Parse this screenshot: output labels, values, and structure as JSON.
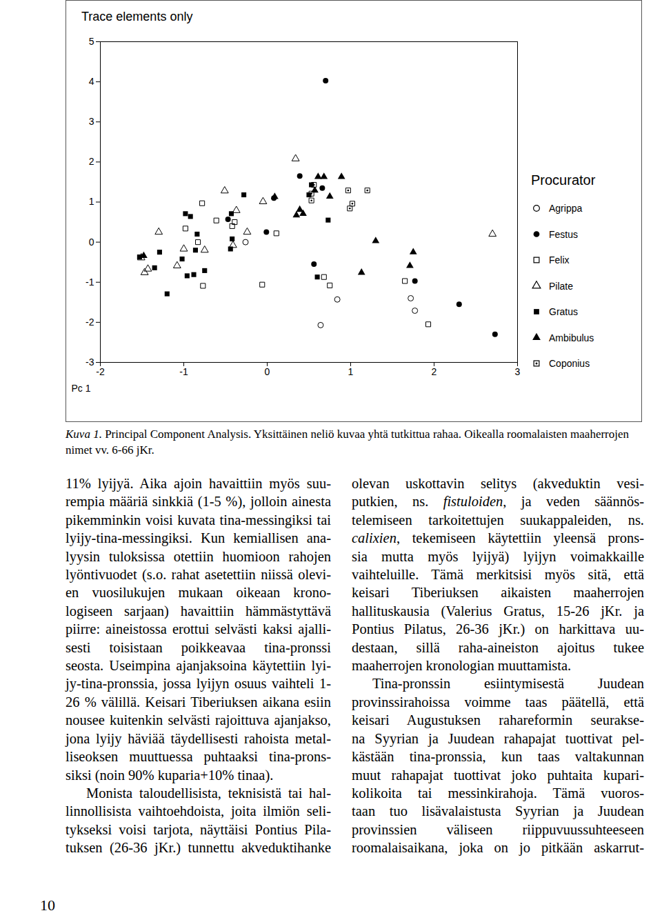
{
  "chart_data": {
    "type": "scatter",
    "title": "Trace elements only",
    "x_label": "Pc 1",
    "xlim": [
      -2,
      3
    ],
    "xticks": [
      -2,
      -1,
      0,
      1,
      2,
      3
    ],
    "ylim": [
      -3,
      5
    ],
    "yticks": [
      -3,
      -2,
      -1,
      0,
      1,
      2,
      3,
      4,
      5
    ],
    "legend": "right",
    "legend_title": "Procurator",
    "series": [
      {
        "name": "Agrippa",
        "marker": "open circle",
        "color": "#000000",
        "x": [
          -0.26,
          0.84,
          0.64,
          1.72,
          1.77
        ],
        "values": [
          0.0,
          -1.43,
          -2.07,
          -1.4,
          -1.71
        ]
      },
      {
        "name": "Festus",
        "marker": "circle",
        "color": "#000000",
        "x": [
          0.7,
          0.39,
          0.08,
          -0.47,
          -0.01,
          0.56,
          1.77,
          2.3,
          2.73,
          0.66
        ],
        "values": [
          4.03,
          1.65,
          1.1,
          0.57,
          0.25,
          -0.55,
          -0.97,
          -1.55,
          -2.3,
          1.35
        ]
      },
      {
        "name": "Felix",
        "marker": "open square",
        "color": "#000000",
        "x": [
          -0.06,
          -0.77,
          0.68,
          0.75,
          1.93,
          1.65,
          -0.78,
          -0.61,
          -0.39,
          0.11,
          -0.98,
          -0.83,
          -0.42
        ],
        "values": [
          -1.06,
          -1.09,
          -0.87,
          -1.08,
          -2.05,
          -0.97,
          0.97,
          0.54,
          0.5,
          0.22,
          0.34,
          0.0,
          0.4
        ]
      },
      {
        "name": "Pilate",
        "marker": "open triangle",
        "color": "#000000",
        "x": [
          0.34,
          -0.51,
          -0.05,
          -0.37,
          -0.24,
          -1.3,
          -1.0,
          -0.75,
          -0.41,
          -1.08,
          -1.43,
          -1.47,
          -1.51,
          2.7
        ],
        "values": [
          2.08,
          1.28,
          1.01,
          0.79,
          0.25,
          0.25,
          -0.17,
          -0.2,
          -0.08,
          -0.59,
          -0.67,
          -0.76,
          -0.39,
          0.2
        ]
      },
      {
        "name": "Gratus",
        "marker": "square",
        "color": "#000000",
        "x": [
          -1.2,
          -1.29,
          -1.53,
          -1.35,
          -0.96,
          -0.88,
          -0.75,
          -1.02,
          -0.98,
          -0.92,
          -0.84,
          -0.86,
          -0.43,
          -0.28,
          -0.42,
          -0.44,
          0.6,
          0.73,
          0.53,
          0.5
        ],
        "values": [
          -1.29,
          -0.25,
          -0.37,
          -0.64,
          -0.84,
          -0.81,
          -0.71,
          -0.42,
          0.71,
          0.64,
          0.2,
          -0.2,
          0.71,
          1.18,
          0.08,
          -0.17,
          -0.87,
          0.55,
          1.43,
          1.18
        ]
      },
      {
        "name": "Ambibulus",
        "marker": "triangle",
        "color": "#000000",
        "x": [
          0.89,
          0.61,
          0.68,
          0.75,
          0.43,
          0.35,
          0.39,
          0.57,
          0.09,
          1.3,
          1.75,
          1.71,
          1.13,
          -1.48
        ],
        "values": [
          1.63,
          1.63,
          1.63,
          1.14,
          0.71,
          0.67,
          0.81,
          1.29,
          1.13,
          0.03,
          -0.25,
          -0.59,
          -0.76,
          -0.34
        ]
      },
      {
        "name": "Coponius",
        "marker": "dotted square",
        "color": "#000000",
        "x": [
          0.97,
          1.2,
          1.02,
          0.99,
          0.56,
          0.53,
          0.53
        ],
        "values": [
          1.29,
          1.29,
          0.96,
          0.84,
          1.43,
          1.04,
          1.21
        ]
      }
    ]
  },
  "caption": {
    "label": "Kuva 1.",
    "text": " Principal Component Analysis. Yksittäinen neliö kuvaa yhtä tutkittua rahaa. Oikealla roomalaisten maaherrojen nimet vv. 6-66 jKr."
  },
  "columns": [
    [
      [
        "11% lyijyä. Aika ajoin havaittiin myös suu-",
        "rempia määriä sinkkiä (1-5 %), jolloin ainesta",
        "pikemminkin voisi kuvata tina-messingiksi tai",
        "lyijy-tina-messingiksi. Kun kemiallisen ana-",
        "lyysin tuloksissa otettiin huomioon rahojen",
        "lyöntivuodet (s.o. rahat asetettiin niissä olevi-",
        "en vuosilukujen mukaan oikeaan krono-",
        "logiseen sarjaan) havaittiin hämmästyttävä",
        "piirre: aineistossa erottui selvästi kaksi ajalli-",
        "sesti toisistaan poikkeavaa tina-pronssi",
        "seosta. Useimpina ajanjaksoina käytettiin lyi-",
        "jy-tina-pronssia, jossa lyijyn osuus vaihteli 1-",
        "26 % välillä. Keisari Tiberiuksen aikana esiin",
        "nousee kuitenkin selvästi rajoittuva ajanjakso,",
        "jona lyijy häviää täydellisesti rahoista metal-",
        "liseoksen muuttuessa puhtaaksi tina-prons-",
        "siksi (noin 90% kuparia+10% tinaa)."
      ],
      [
        "Monista taloudellisista, teknisistä tai hal-",
        "linnollisista vaihtoehdoista, joita ilmiön seli-",
        "tykseksi voisi tarjota, näyttäisi Pontius Pila-",
        "tuksen (26-36 jKr.) tunnettu akveduktihanke"
      ]
    ],
    [
      [
        "olevan uskottavin selitys (akveduktin vesi-",
        [
          "putkien, ns. ",
          {
            "italic": "fistuloiden"
          },
          ", ja veden säännös-"
        ],
        "telemiseen tarkoitettujen suukappaleiden, ns.",
        [
          {
            "italic": "calixien"
          },
          ", tekemiseen käytettiin yleensä prons-"
        ],
        "sia mutta myös lyijyä) lyijyn voimakkaille",
        "vaihteluille. Tämä merkitsisi myös sitä, että",
        "keisari Tiberiuksen aikaisten maaherrojen",
        "hallituskausia (Valerius Gratus, 15-26 jKr. ja",
        "Pontius Pilatus, 26-36 jKr.) on harkittava uu-",
        "destaan, sillä raha-aineiston ajoitus tukee",
        "maaherrojen kronologian muuttamista."
      ],
      [
        "Tina-pronssin esiintymisestä Juudean",
        "provinssirahoissa voimme taas päätellä, että",
        "keisari Augustuksen rahareformin seurakse-",
        "na Syyrian ja Juudean rahapajat tuottivat pel-",
        "kästään tina-pronssia, kun taas valtakunnan",
        "muut rahapajat tuottivat joko puhtaita kupari-",
        "kolikoita tai messinkirahoja. Tämä vuoros-",
        "taan tuo lisävalaistusta Syyrian ja Juudean",
        "provinssien väliseen riippuvuussuhteeseen",
        "roomalaisaikana, joka on jo pitkään askarrut-"
      ]
    ]
  ],
  "page_number": "10"
}
